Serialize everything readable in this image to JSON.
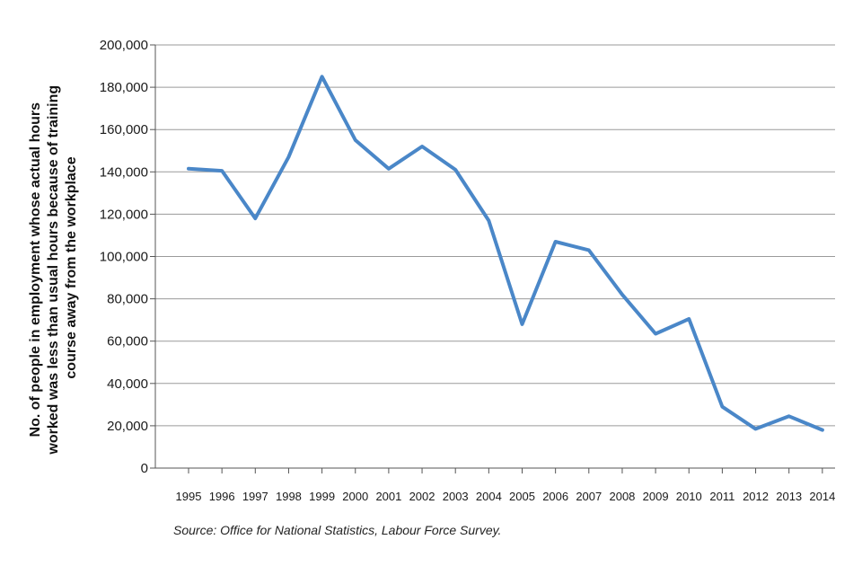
{
  "chart_data": {
    "type": "line",
    "title": "",
    "xlabel": "",
    "ylabel_lines": [
      "No. of people in employment whose actual hours",
      "worked was less than usual hours because of training",
      "course away from the workplace"
    ],
    "categories": [
      "1995",
      "1996",
      "1997",
      "1998",
      "1999",
      "2000",
      "2001",
      "2002",
      "2003",
      "2004",
      "2005",
      "2006",
      "2007",
      "2008",
      "2009",
      "2010",
      "2011",
      "2012",
      "2013",
      "2014"
    ],
    "series": [
      {
        "values": [
          141500,
          140500,
          118000,
          147000,
          185000,
          155000,
          141500,
          152000,
          141000,
          117000,
          68000,
          107000,
          103000,
          82000,
          63500,
          70500,
          29000,
          18500,
          24500,
          18000
        ]
      }
    ],
    "ylim": [
      0,
      200000
    ],
    "yticks": [
      0,
      20000,
      40000,
      60000,
      80000,
      100000,
      120000,
      140000,
      160000,
      180000,
      200000
    ],
    "ytick_labels": [
      "0",
      "20,000",
      "40,000",
      "60,000",
      "80,000",
      "100,000",
      "120,000",
      "140,000",
      "160,000",
      "180,000",
      "200,000"
    ],
    "grid": "horizontal",
    "line_color": "#4a87c8",
    "source": "Source: Office for National Statistics, Labour Force Survey."
  }
}
